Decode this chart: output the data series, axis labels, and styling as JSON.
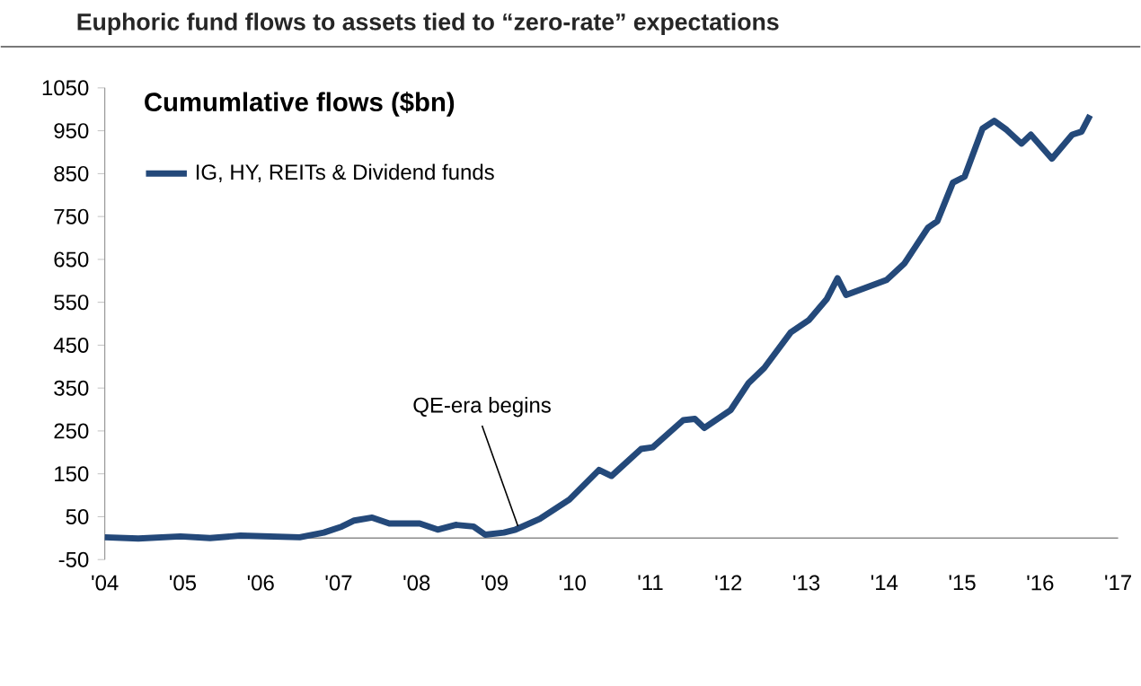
{
  "chart_data": {
    "type": "line",
    "title": "Euphoric fund flows to assets tied to “zero-rate” expectations",
    "subtitle": "Cumumlative flows ($bn)",
    "series": [
      {
        "name": "IG, HY, REITs & Dividend funds",
        "color": "#24497a",
        "x": [
          2004.0,
          2004.43,
          2004.97,
          2005.35,
          2005.74,
          2006.5,
          2006.81,
          2007.04,
          2007.2,
          2007.43,
          2007.65,
          2008.04,
          2008.27,
          2008.5,
          2008.73,
          2008.88,
          2009.12,
          2009.27,
          2009.58,
          2009.96,
          2010.34,
          2010.5,
          2010.88,
          2011.03,
          2011.42,
          2011.57,
          2011.69,
          2012.03,
          2012.26,
          2012.46,
          2012.8,
          2013.03,
          2013.26,
          2013.4,
          2013.51,
          2013.72,
          2014.03,
          2014.26,
          2014.56,
          2014.68,
          2014.88,
          2015.03,
          2015.26,
          2015.41,
          2015.57,
          2015.76,
          2015.88,
          2016.15,
          2016.41,
          2016.53,
          2016.64
        ],
        "values": [
          2,
          -1,
          4,
          0,
          6,
          2,
          13,
          27,
          41,
          48,
          34,
          34,
          20,
          31,
          27,
          8,
          13,
          20,
          45,
          90,
          159,
          145,
          208,
          212,
          275,
          278,
          257,
          299,
          362,
          397,
          480,
          508,
          557,
          606,
          567,
          581,
          602,
          641,
          724,
          739,
          829,
          843,
          955,
          973,
          952,
          920,
          941,
          885,
          941,
          948,
          986
        ]
      }
    ],
    "xlim": [
      2004,
      2017
    ],
    "xticks": [
      {
        "value": 2004,
        "label": "'04"
      },
      {
        "value": 2005,
        "label": "'05"
      },
      {
        "value": 2006,
        "label": "'06"
      },
      {
        "value": 2007,
        "label": "'07"
      },
      {
        "value": 2008,
        "label": "'08"
      },
      {
        "value": 2009,
        "label": "'09"
      },
      {
        "value": 2010,
        "label": "'10"
      },
      {
        "value": 2011,
        "label": "'11"
      },
      {
        "value": 2012,
        "label": "'12"
      },
      {
        "value": 2013,
        "label": "'13"
      },
      {
        "value": 2014,
        "label": "'14"
      },
      {
        "value": 2015,
        "label": "'15"
      },
      {
        "value": 2016,
        "label": "'16"
      },
      {
        "value": 2017,
        "label": "'17"
      }
    ],
    "ylim": [
      -50,
      1050
    ],
    "yticks": [
      -50,
      50,
      150,
      250,
      350,
      450,
      550,
      650,
      750,
      850,
      950,
      1050
    ],
    "annotations": [
      {
        "text": "QE-era begins",
        "x": 2009.3,
        "y": 28
      }
    ],
    "legend": "top left",
    "grid": false,
    "marker": "none",
    "line_style": "solid"
  }
}
